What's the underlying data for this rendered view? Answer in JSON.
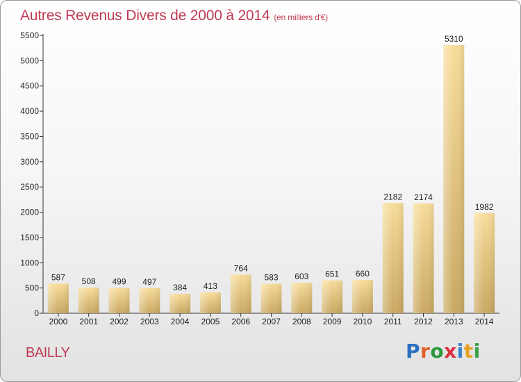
{
  "header": {
    "title": "Autres Revenus Divers de 2000 à 2014",
    "unit": "(en milliers d'€)"
  },
  "footer": {
    "location": "BAILLY",
    "logo": [
      "P",
      "r",
      "o",
      "x",
      "i",
      "t",
      "i"
    ],
    "logo_colors": [
      "#2b6fbf",
      "#e0612b",
      "#2b9a3c",
      "#d9303f",
      "#3b7fd0",
      "#e6a21f",
      "#3aa04a"
    ]
  },
  "chart_data": {
    "type": "bar",
    "title": "Autres Revenus Divers de 2000 à 2014",
    "categories": [
      "2000",
      "2001",
      "2002",
      "2003",
      "2004",
      "2005",
      "2006",
      "2007",
      "2008",
      "2009",
      "2010",
      "2011",
      "2012",
      "2013",
      "2014"
    ],
    "values": [
      587,
      508,
      499,
      497,
      384,
      413,
      764,
      583,
      603,
      651,
      660,
      2182,
      2174,
      5310,
      1982
    ],
    "ylim": [
      0,
      5500
    ],
    "yticks": [
      0,
      500,
      1000,
      1500,
      2000,
      2500,
      3000,
      3500,
      4000,
      4500,
      5000,
      5500
    ],
    "grid": false,
    "colors": {
      "bar_light": "#f8dc9a",
      "bar_dark": "#c9a862",
      "axis": "#333333"
    }
  }
}
